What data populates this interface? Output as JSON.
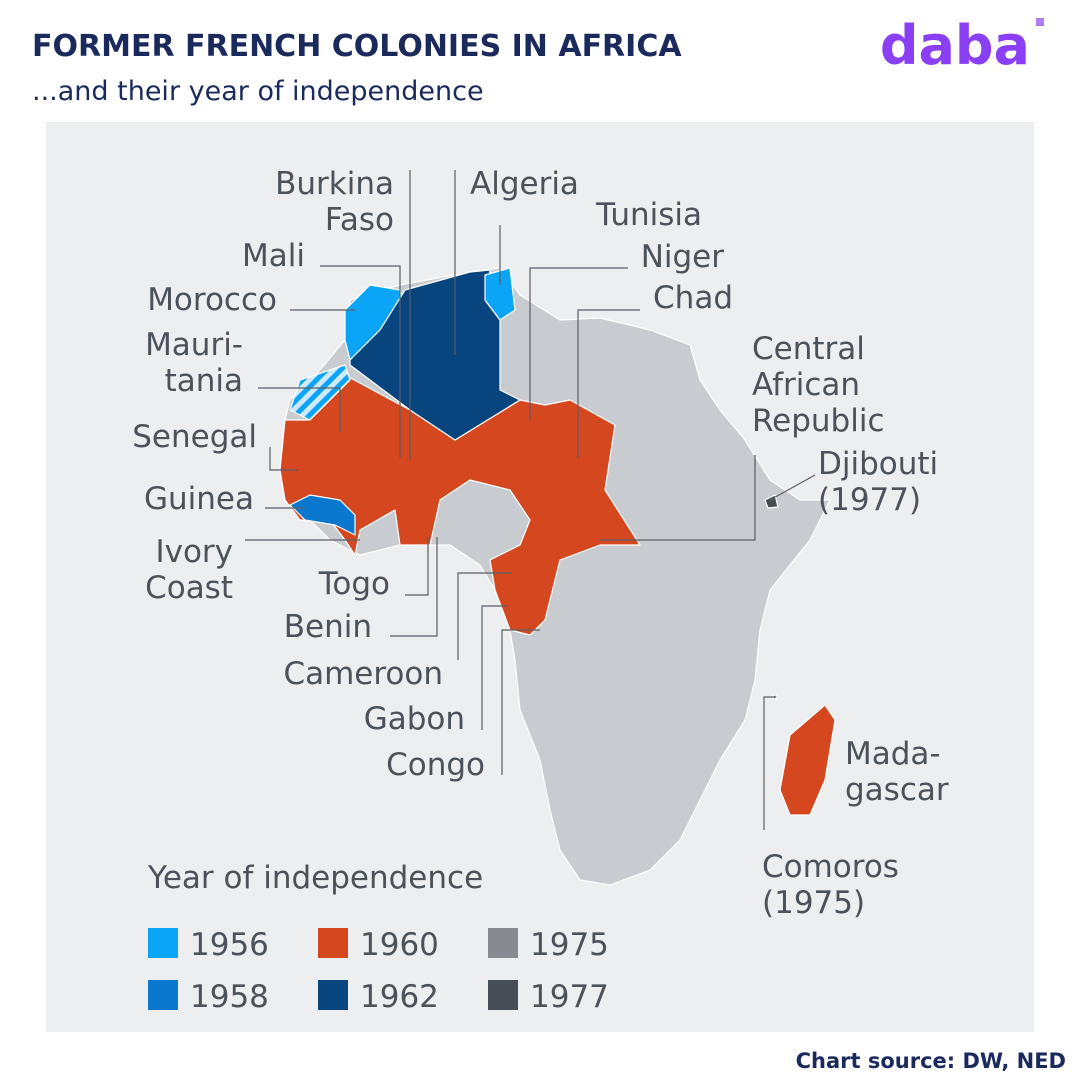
{
  "header": {
    "title": "FORMER FRENCH COLONIES IN AFRICA",
    "subtitle": "...and their year of independence",
    "logo": "daba"
  },
  "map": {
    "labels": [
      {
        "lines": [
          "Burkina",
          "Faso"
        ]
      },
      {
        "lines": [
          "Algeria"
        ]
      },
      {
        "lines": [
          "Tunisia"
        ]
      },
      {
        "lines": [
          "Mali"
        ]
      },
      {
        "lines": [
          "Niger"
        ]
      },
      {
        "lines": [
          "Morocco"
        ]
      },
      {
        "lines": [
          "Chad"
        ]
      },
      {
        "lines": [
          "Mauri-",
          "tania"
        ]
      },
      {
        "lines": [
          "Central",
          "African",
          "Republic"
        ]
      },
      {
        "lines": [
          "Senegal"
        ]
      },
      {
        "lines": [
          "Djibouti",
          "(1977)"
        ]
      },
      {
        "lines": [
          "Guinea"
        ]
      },
      {
        "lines": [
          "Ivory",
          "Coast"
        ]
      },
      {
        "lines": [
          "Togo"
        ]
      },
      {
        "lines": [
          "Benin"
        ]
      },
      {
        "lines": [
          "Cameroon"
        ]
      },
      {
        "lines": [
          "Gabon"
        ]
      },
      {
        "lines": [
          "Congo"
        ]
      },
      {
        "lines": [
          "Mada-",
          "gascar"
        ]
      },
      {
        "lines": [
          "Comoros",
          "(1975)"
        ]
      }
    ]
  },
  "legend": {
    "title": "Year of independence",
    "items": [
      {
        "label": "1956",
        "color": "#0ba5f7"
      },
      {
        "label": "1958",
        "color": "#0a78cf"
      },
      {
        "label": "1960",
        "color": "#d4471f"
      },
      {
        "label": "1962",
        "color": "#08457f"
      },
      {
        "label": "1975",
        "color": "#878b91"
      },
      {
        "label": "1977",
        "color": "#474d55"
      }
    ]
  },
  "footer": {
    "source": "Chart source: DW, NED"
  }
}
